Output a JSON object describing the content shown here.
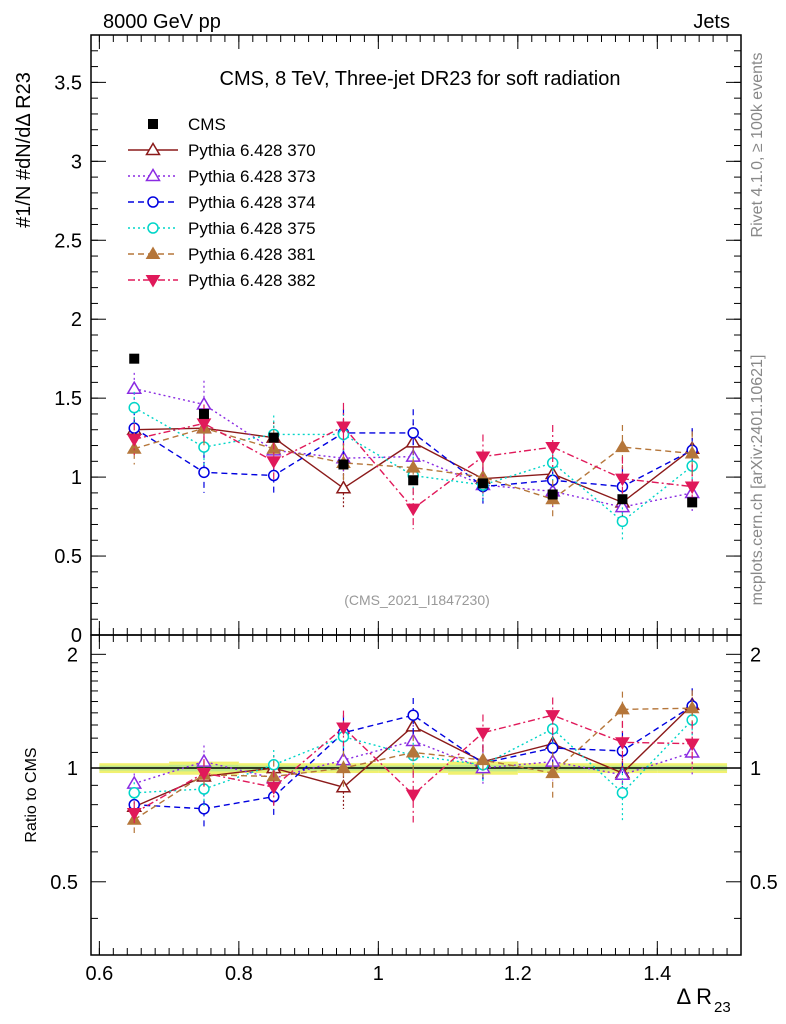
{
  "header": {
    "energy_label": "8000 GeV pp",
    "process_label": "Jets",
    "side_rivet": "Rivet 4.1.0, ≥ 100k events",
    "side_mcplots": "mcplots.cern.ch [arXiv:2401.10621]"
  },
  "chart_data": {
    "type": "line",
    "title": "CMS, 8 TeV, Three-jet DR23 for soft radiation",
    "watermark": "(CMS_2021_I1847230)",
    "xlabel": "Δ R",
    "xlabel_sub": "23",
    "ylabel": "#1/N #dN/dΔ R23",
    "ratio_ylabel": "Ratio to CMS",
    "xlim": [
      0.588,
      1.52
    ],
    "ylim": [
      0,
      3.8
    ],
    "ratio_ylim": [
      0.32,
      2.25
    ],
    "x_ticks": [
      "0.6",
      "0.8",
      "1",
      "1.2",
      "1.4"
    ],
    "y_ticks": [
      "0",
      "0.5",
      "1",
      "1.5",
      "2",
      "2.5",
      "3",
      "3.5"
    ],
    "ratio_ticks": [
      "0.5",
      "1",
      "2"
    ],
    "x": [
      0.65,
      0.75,
      0.85,
      0.95,
      1.05,
      1.15,
      1.25,
      1.35,
      1.45
    ],
    "data": {
      "name": "CMS",
      "values": [
        1.75,
        1.4,
        1.25,
        1.08,
        0.98,
        0.96,
        0.89,
        0.86,
        0.84
      ],
      "ratio_band": [
        0.03,
        0.04,
        0.03,
        0.03,
        0.03,
        0.04,
        0.03,
        0.03,
        0.03
      ]
    },
    "series": [
      {
        "name": "Pythia 6.428 370",
        "color": "#8b1a1a",
        "marker": "triangle-open",
        "dash": "",
        "values": [
          1.3,
          1.31,
          1.25,
          0.93,
          1.22,
          0.99,
          1.02,
          0.84,
          1.18
        ],
        "errors": [
          0.08,
          0.1,
          0.1,
          0.12,
          0.12,
          0.1,
          0.1,
          0.1,
          0.12
        ],
        "ratio": [
          0.79,
          0.95,
          1.0,
          0.89,
          1.29,
          1.04,
          1.16,
          0.97,
          1.47
        ]
      },
      {
        "name": "Pythia 6.428 373",
        "color": "#8a2be2",
        "marker": "triangle-open",
        "dash": "2,3",
        "values": [
          1.56,
          1.46,
          1.17,
          1.12,
          1.13,
          0.95,
          0.91,
          0.81,
          0.9
        ],
        "errors": [
          0.1,
          0.15,
          0.1,
          0.12,
          0.12,
          0.1,
          0.1,
          0.1,
          0.12
        ],
        "ratio": [
          0.91,
          1.04,
          0.94,
          1.05,
          1.18,
          1.0,
          1.04,
          0.96,
          1.1
        ]
      },
      {
        "name": "Pythia 6.428 374",
        "color": "#0000e0",
        "marker": "circle-open",
        "dash": "6,4",
        "values": [
          1.31,
          1.03,
          1.01,
          1.28,
          1.28,
          0.94,
          0.98,
          0.94,
          1.17
        ],
        "errors": [
          0.12,
          0.13,
          0.12,
          0.15,
          0.15,
          0.12,
          0.12,
          0.12,
          0.14
        ],
        "ratio": [
          0.8,
          0.78,
          0.84,
          1.24,
          1.38,
          1.03,
          1.13,
          1.11,
          1.46
        ]
      },
      {
        "name": "Pythia 6.428 375",
        "color": "#00d5c8",
        "marker": "circle-open",
        "dash": "2,3",
        "values": [
          1.44,
          1.19,
          1.27,
          1.27,
          1.01,
          0.95,
          1.09,
          0.72,
          1.07
        ],
        "errors": [
          0.1,
          0.12,
          0.12,
          0.13,
          0.12,
          0.1,
          0.12,
          0.12,
          0.12
        ],
        "ratio": [
          0.86,
          0.88,
          1.02,
          1.21,
          1.08,
          1.02,
          1.27,
          0.86,
          1.34
        ]
      },
      {
        "name": "Pythia 6.428 381",
        "color": "#b5763a",
        "marker": "triangle-filled",
        "dash": "6,4",
        "values": [
          1.18,
          1.31,
          1.18,
          1.09,
          1.06,
          1.0,
          0.86,
          1.19,
          1.15
        ],
        "errors": [
          0.1,
          0.12,
          0.12,
          0.12,
          0.12,
          0.1,
          0.12,
          0.14,
          0.14
        ],
        "ratio": [
          0.73,
          0.96,
          0.95,
          1.0,
          1.1,
          1.05,
          0.97,
          1.43,
          1.44
        ]
      },
      {
        "name": "Pythia 6.428 382",
        "color": "#e0195a",
        "marker": "triangle-down-filled",
        "dash": "7,3,2,3",
        "values": [
          1.24,
          1.34,
          1.1,
          1.32,
          0.8,
          1.13,
          1.19,
          0.99,
          0.94
        ],
        "errors": [
          0.1,
          0.12,
          0.12,
          0.15,
          0.13,
          0.14,
          0.14,
          0.14,
          0.14
        ],
        "ratio": [
          0.76,
          0.97,
          0.89,
          1.28,
          0.85,
          1.24,
          1.38,
          1.17,
          1.16
        ]
      }
    ]
  }
}
